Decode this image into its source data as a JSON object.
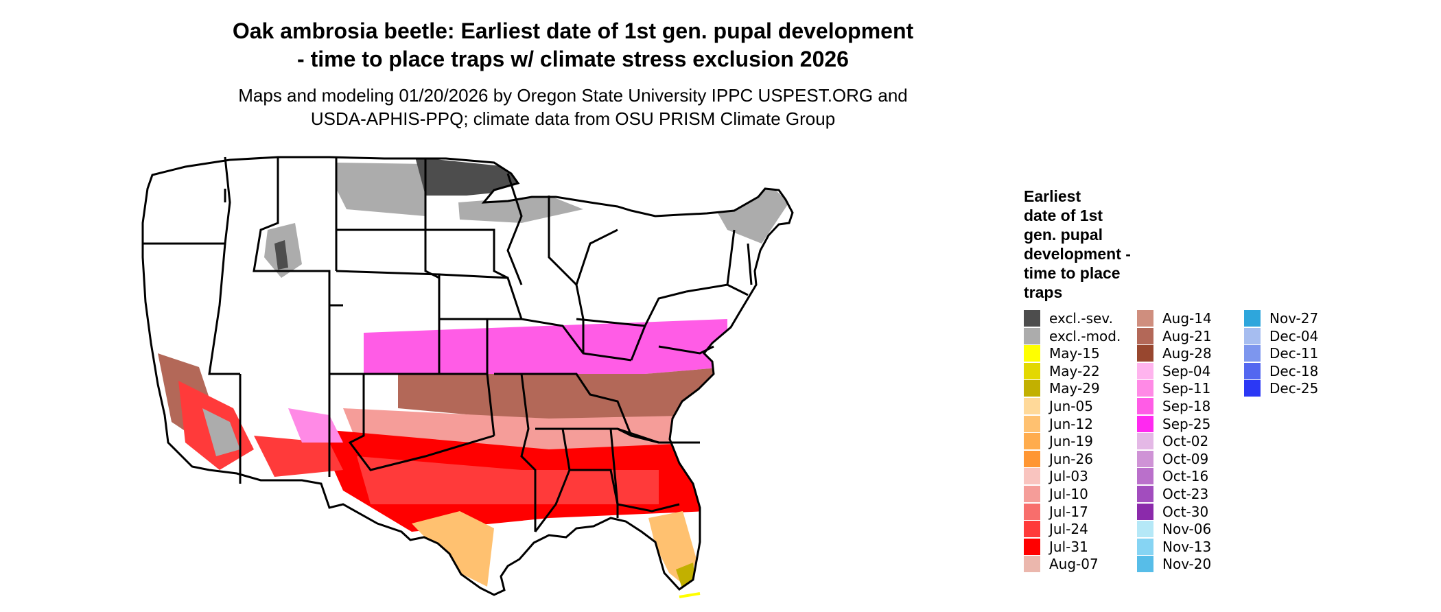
{
  "title_line1": "Oak ambrosia beetle: Earliest date of 1st gen. pupal development",
  "title_line2": "- time to place traps w/ climate stress exclusion 2026",
  "subtitle_line1": "Maps and modeling 01/20/2026 by Oregon State University IPPC USPEST.ORG and",
  "subtitle_line2": "USDA-APHIS-PPQ; climate data from OSU PRISM Climate Group",
  "legend": {
    "title_lines": [
      "Earliest",
      "date of 1st",
      "gen. pupal",
      "development -",
      "time to place",
      "traps"
    ],
    "columns": [
      [
        {
          "label": "excl.-sev.",
          "color": "#4d4d4d"
        },
        {
          "label": "excl.-mod.",
          "color": "#acacac"
        },
        {
          "label": "May-15",
          "color": "#ffff00"
        },
        {
          "label": "May-22",
          "color": "#e3d800"
        },
        {
          "label": "May-29",
          "color": "#c2b000"
        },
        {
          "label": "Jun-05",
          "color": "#ffd999"
        },
        {
          "label": "Jun-12",
          "color": "#ffc170"
        },
        {
          "label": "Jun-19",
          "color": "#ffac4d"
        },
        {
          "label": "Jun-26",
          "color": "#ff9633"
        },
        {
          "label": "Jul-03",
          "color": "#f9c4bf"
        },
        {
          "label": "Jul-10",
          "color": "#f59d99"
        },
        {
          "label": "Jul-17",
          "color": "#f86e6c"
        },
        {
          "label": "Jul-24",
          "color": "#ff3a3a"
        },
        {
          "label": "Jul-31",
          "color": "#ff0000"
        },
        {
          "label": "Aug-07",
          "color": "#ebb7ad"
        }
      ],
      [
        {
          "label": "Aug-14",
          "color": "#cf8e7e"
        },
        {
          "label": "Aug-21",
          "color": "#b36858"
        },
        {
          "label": "Aug-28",
          "color": "#98472f"
        },
        {
          "label": "Sep-04",
          "color": "#ffb4ee"
        },
        {
          "label": "Sep-11",
          "color": "#ff8ae6"
        },
        {
          "label": "Sep-18",
          "color": "#ff5ce6"
        },
        {
          "label": "Sep-25",
          "color": "#ff29f0"
        },
        {
          "label": "Oct-02",
          "color": "#e4b8e6"
        },
        {
          "label": "Oct-09",
          "color": "#cf93d6"
        },
        {
          "label": "Oct-16",
          "color": "#ba70cb"
        },
        {
          "label": "Oct-23",
          "color": "#a24dbe"
        },
        {
          "label": "Oct-30",
          "color": "#8b2aab"
        },
        {
          "label": "Nov-06",
          "color": "#b5e8f7"
        },
        {
          "label": "Nov-13",
          "color": "#86d4f3"
        },
        {
          "label": "Nov-20",
          "color": "#57bde8"
        }
      ],
      [
        {
          "label": "Nov-27",
          "color": "#2ea6dc"
        },
        {
          "label": "Dec-04",
          "color": "#a6bdf0"
        },
        {
          "label": "Dec-11",
          "color": "#7d96ee"
        },
        {
          "label": "Dec-18",
          "color": "#5367f0"
        },
        {
          "label": "Dec-25",
          "color": "#2b38f5"
        }
      ]
    ]
  }
}
